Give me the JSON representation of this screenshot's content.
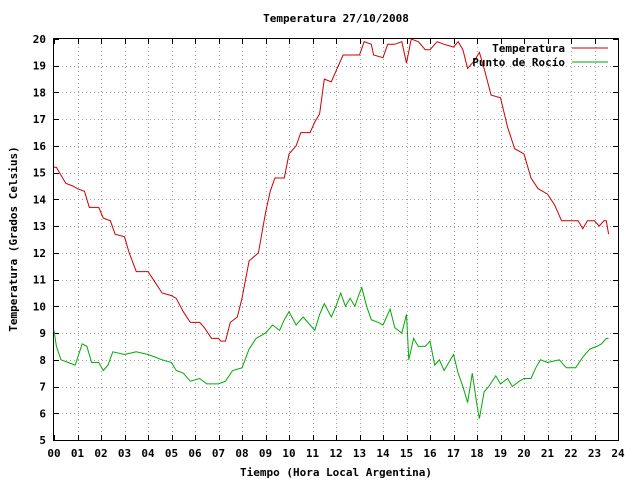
{
  "chart_data": {
    "type": "line",
    "title": "Temperatura 27/10/2008",
    "xlabel": "Tiempo (Hora Local Argentina)",
    "ylabel": "Temperatura (Grados Celsius)",
    "xlim": [
      0,
      24
    ],
    "ylim": [
      5,
      20
    ],
    "x_ticks": [
      0,
      1,
      2,
      3,
      4,
      5,
      6,
      7,
      8,
      9,
      10,
      11,
      12,
      13,
      14,
      15,
      16,
      17,
      18,
      19,
      20,
      21,
      22,
      23,
      24
    ],
    "x_tick_labels": [
      "00",
      "01",
      "02",
      "03",
      "04",
      "05",
      "06",
      "07",
      "08",
      "09",
      "10",
      "11",
      "12",
      "13",
      "14",
      "15",
      "16",
      "17",
      "18",
      "19",
      "20",
      "21",
      "22",
      "23",
      "24"
    ],
    "y_ticks": [
      5,
      6,
      7,
      8,
      9,
      10,
      11,
      12,
      13,
      14,
      15,
      16,
      17,
      18,
      19,
      20
    ],
    "grid": true,
    "legend_position": "top-right",
    "series": [
      {
        "name": "Temperatura",
        "color": "#cc0000",
        "points": [
          [
            0,
            15.2
          ],
          [
            0.1,
            15.2
          ],
          [
            0.3,
            14.9
          ],
          [
            0.5,
            14.6
          ],
          [
            0.8,
            14.5
          ],
          [
            1.0,
            14.4
          ],
          [
            1.3,
            14.3
          ],
          [
            1.5,
            13.7
          ],
          [
            1.9,
            13.7
          ],
          [
            2.1,
            13.3
          ],
          [
            2.4,
            13.2
          ],
          [
            2.6,
            12.7
          ],
          [
            3.0,
            12.6
          ],
          [
            3.2,
            12.0
          ],
          [
            3.5,
            11.3
          ],
          [
            4.0,
            11.3
          ],
          [
            4.3,
            10.9
          ],
          [
            4.6,
            10.5
          ],
          [
            5.0,
            10.4
          ],
          [
            5.2,
            10.3
          ],
          [
            5.5,
            9.8
          ],
          [
            5.8,
            9.4
          ],
          [
            6.2,
            9.4
          ],
          [
            6.4,
            9.2
          ],
          [
            6.7,
            8.8
          ],
          [
            7.0,
            8.8
          ],
          [
            7.1,
            8.7
          ],
          [
            7.3,
            8.7
          ],
          [
            7.5,
            9.4
          ],
          [
            7.8,
            9.6
          ],
          [
            8.0,
            10.3
          ],
          [
            8.3,
            11.7
          ],
          [
            8.7,
            12.0
          ],
          [
            9.0,
            13.5
          ],
          [
            9.2,
            14.3
          ],
          [
            9.4,
            14.8
          ],
          [
            9.8,
            14.8
          ],
          [
            10.0,
            15.7
          ],
          [
            10.3,
            16.0
          ],
          [
            10.5,
            16.5
          ],
          [
            10.9,
            16.5
          ],
          [
            11.1,
            16.9
          ],
          [
            11.3,
            17.2
          ],
          [
            11.5,
            18.5
          ],
          [
            11.8,
            18.4
          ],
          [
            12.0,
            18.8
          ],
          [
            12.3,
            19.4
          ],
          [
            12.6,
            19.4
          ],
          [
            13.0,
            19.4
          ],
          [
            13.2,
            19.9
          ],
          [
            13.5,
            19.8
          ],
          [
            13.6,
            19.4
          ],
          [
            14.0,
            19.3
          ],
          [
            14.2,
            19.8
          ],
          [
            14.5,
            19.8
          ],
          [
            14.8,
            19.9
          ],
          [
            15.0,
            19.1
          ],
          [
            15.2,
            20.0
          ],
          [
            15.5,
            19.9
          ],
          [
            15.8,
            19.6
          ],
          [
            16.0,
            19.6
          ],
          [
            16.3,
            19.9
          ],
          [
            16.6,
            19.8
          ],
          [
            17.0,
            19.7
          ],
          [
            17.2,
            19.9
          ],
          [
            17.4,
            19.6
          ],
          [
            17.6,
            18.9
          ],
          [
            17.9,
            19.2
          ],
          [
            18.1,
            19.5
          ],
          [
            18.3,
            18.9
          ],
          [
            18.6,
            17.9
          ],
          [
            19.0,
            17.8
          ],
          [
            19.3,
            16.7
          ],
          [
            19.6,
            15.9
          ],
          [
            20.0,
            15.7
          ],
          [
            20.3,
            14.8
          ],
          [
            20.6,
            14.4
          ],
          [
            21.0,
            14.2
          ],
          [
            21.3,
            13.8
          ],
          [
            21.6,
            13.2
          ],
          [
            22.0,
            13.2
          ],
          [
            22.3,
            13.2
          ],
          [
            22.5,
            12.9
          ],
          [
            22.7,
            13.2
          ],
          [
            23.0,
            13.2
          ],
          [
            23.2,
            13.0
          ],
          [
            23.4,
            13.2
          ],
          [
            23.5,
            13.2
          ],
          [
            23.6,
            12.7
          ]
        ]
      },
      {
        "name": "Punto de Rocío",
        "color": "#00aa00",
        "points": [
          [
            0,
            9.1
          ],
          [
            0.1,
            8.5
          ],
          [
            0.3,
            8.0
          ],
          [
            0.6,
            7.9
          ],
          [
            0.9,
            7.8
          ],
          [
            1.2,
            8.6
          ],
          [
            1.4,
            8.5
          ],
          [
            1.6,
            7.9
          ],
          [
            1.9,
            7.9
          ],
          [
            2.1,
            7.6
          ],
          [
            2.3,
            7.8
          ],
          [
            2.5,
            8.3
          ],
          [
            3.0,
            8.2
          ],
          [
            3.5,
            8.3
          ],
          [
            4.0,
            8.2
          ],
          [
            4.3,
            8.1
          ],
          [
            4.6,
            8.0
          ],
          [
            5.0,
            7.9
          ],
          [
            5.2,
            7.6
          ],
          [
            5.5,
            7.5
          ],
          [
            5.8,
            7.2
          ],
          [
            6.2,
            7.3
          ],
          [
            6.5,
            7.1
          ],
          [
            7.0,
            7.1
          ],
          [
            7.3,
            7.2
          ],
          [
            7.6,
            7.6
          ],
          [
            8.0,
            7.7
          ],
          [
            8.3,
            8.4
          ],
          [
            8.6,
            8.8
          ],
          [
            9.0,
            9.0
          ],
          [
            9.3,
            9.3
          ],
          [
            9.6,
            9.1
          ],
          [
            9.8,
            9.5
          ],
          [
            10.0,
            9.8
          ],
          [
            10.3,
            9.3
          ],
          [
            10.6,
            9.6
          ],
          [
            10.9,
            9.3
          ],
          [
            11.1,
            9.1
          ],
          [
            11.3,
            9.7
          ],
          [
            11.5,
            10.1
          ],
          [
            11.8,
            9.6
          ],
          [
            12.0,
            10.0
          ],
          [
            12.2,
            10.5
          ],
          [
            12.4,
            10.0
          ],
          [
            12.6,
            10.3
          ],
          [
            12.8,
            10.0
          ],
          [
            13.0,
            10.5
          ],
          [
            13.1,
            10.7
          ],
          [
            13.3,
            10.0
          ],
          [
            13.5,
            9.5
          ],
          [
            13.8,
            9.4
          ],
          [
            14.0,
            9.3
          ],
          [
            14.3,
            9.9
          ],
          [
            14.5,
            9.2
          ],
          [
            14.8,
            9.0
          ],
          [
            15.0,
            9.7
          ],
          [
            15.1,
            8.0
          ],
          [
            15.3,
            8.8
          ],
          [
            15.5,
            8.5
          ],
          [
            15.8,
            8.5
          ],
          [
            16.0,
            8.7
          ],
          [
            16.2,
            7.8
          ],
          [
            16.4,
            8.0
          ],
          [
            16.6,
            7.6
          ],
          [
            17.0,
            8.2
          ],
          [
            17.2,
            7.5
          ],
          [
            17.4,
            7.0
          ],
          [
            17.6,
            6.4
          ],
          [
            17.8,
            7.5
          ],
          [
            18.0,
            6.3
          ],
          [
            18.1,
            5.8
          ],
          [
            18.3,
            6.8
          ],
          [
            18.5,
            7.0
          ],
          [
            18.8,
            7.4
          ],
          [
            19.0,
            7.1
          ],
          [
            19.3,
            7.3
          ],
          [
            19.5,
            7.0
          ],
          [
            19.8,
            7.2
          ],
          [
            20.0,
            7.3
          ],
          [
            20.3,
            7.3
          ],
          [
            20.5,
            7.7
          ],
          [
            20.7,
            8.0
          ],
          [
            21.0,
            7.9
          ],
          [
            21.5,
            8.0
          ],
          [
            21.8,
            7.7
          ],
          [
            22.2,
            7.7
          ],
          [
            22.5,
            8.1
          ],
          [
            22.8,
            8.4
          ],
          [
            23.1,
            8.5
          ],
          [
            23.3,
            8.6
          ],
          [
            23.5,
            8.8
          ],
          [
            23.6,
            8.8
          ]
        ]
      }
    ]
  }
}
